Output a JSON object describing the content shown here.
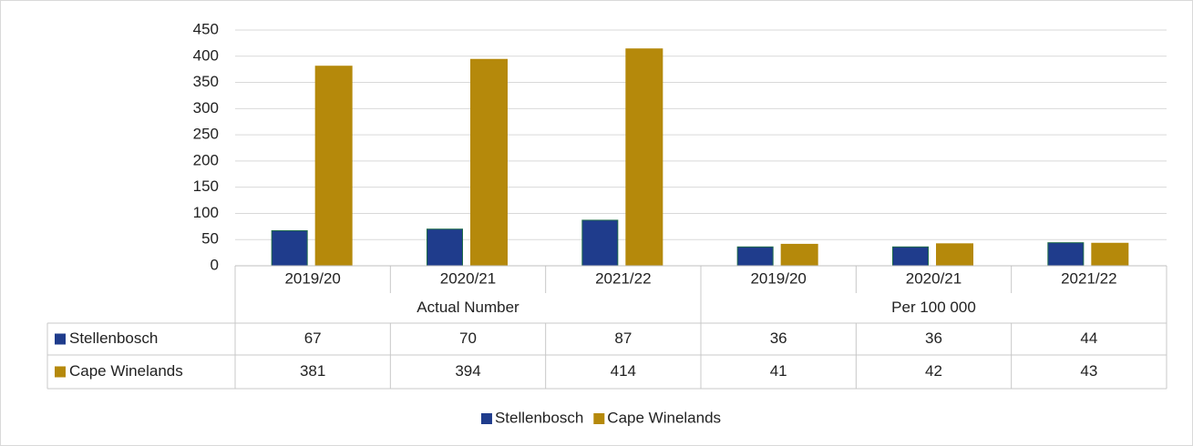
{
  "chart_data": {
    "type": "bar",
    "groups": [
      {
        "name": "Actual Number",
        "categories": [
          "2019/20",
          "2020/21",
          "2021/22"
        ]
      },
      {
        "name": "Per 100 000",
        "categories": [
          "2019/20",
          "2020/21",
          "2021/22"
        ]
      }
    ],
    "series": [
      {
        "name": "Stellenbosch",
        "color": "#1f3c8c",
        "values": [
          67,
          70,
          87,
          36,
          36,
          44
        ]
      },
      {
        "name": "Cape Winelands",
        "color": "#b5890b",
        "values": [
          381,
          394,
          414,
          41,
          42,
          43
        ]
      }
    ],
    "ylim": [
      0,
      450
    ],
    "yticks": [
      0,
      50,
      100,
      150,
      200,
      250,
      300,
      350,
      400,
      450
    ],
    "grid": true,
    "legend": "bottom",
    "data_table": true
  }
}
